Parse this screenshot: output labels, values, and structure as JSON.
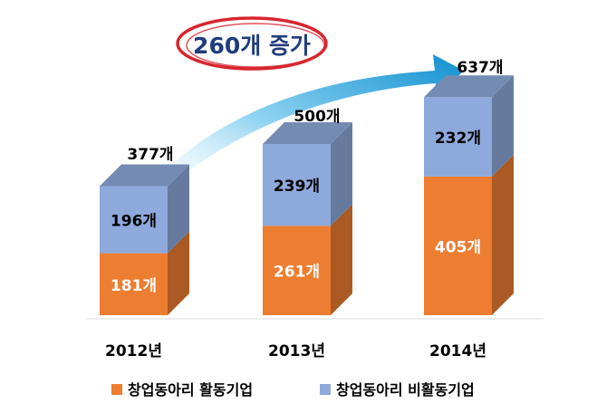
{
  "chart_data": {
    "type": "bar",
    "stacked": true,
    "categories": [
      "2012년",
      "2013년",
      "2014년"
    ],
    "series": [
      {
        "name": "창업동아리 활동기업",
        "values": [
          181,
          261,
          405
        ],
        "labels": [
          "181개",
          "261개",
          "405개"
        ],
        "color": "#ED7D31",
        "label_color": "#ffffff"
      },
      {
        "name": "창업동아리 비활동기업",
        "values": [
          196,
          239,
          232
        ],
        "labels": [
          "196개",
          "239개",
          "232개"
        ],
        "color": "#8EA9DB",
        "label_color": "#000000"
      }
    ],
    "totals": [
      377,
      500,
      637
    ],
    "total_labels": [
      "377개",
      "500개",
      "637개"
    ],
    "annotation": "260개 증가",
    "ylim": [
      0,
      700
    ],
    "legend_position": "bottom",
    "grid": false
  }
}
